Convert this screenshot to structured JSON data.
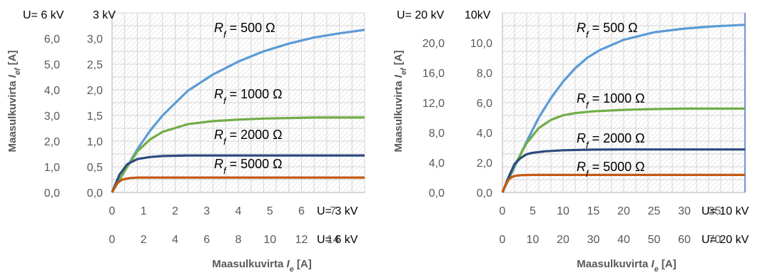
{
  "chart_data": [
    {
      "type": "line",
      "xlabel": "Maasulkuvirta I_e [A]",
      "ylabel": "Maasulkuvirta I_ef [A]",
      "x_axis_primary": {
        "unit_label": "U= 3 kV",
        "ticks": [
          "0",
          "1",
          "2",
          "3",
          "4",
          "5",
          "6",
          "7"
        ],
        "xlim": [
          0,
          10
        ]
      },
      "x_axis_secondary": {
        "unit_label": "U= 6 kV",
        "ticks": [
          "0",
          "2",
          "4",
          "6",
          "8",
          "10",
          "12",
          "14"
        ],
        "xlim": [
          0,
          20
        ]
      },
      "y_axis_primary": {
        "unit_label": "3 kV",
        "ticks": [
          "0,0",
          "0,5",
          "1,0",
          "1,5",
          "2,0",
          "2,5",
          "3,0"
        ],
        "ylim": [
          0,
          3.5
        ]
      },
      "y_axis_secondary": {
        "unit_label": "U= 6 kV",
        "ticks": [
          "0,0",
          "1,0",
          "2,0",
          "3,0",
          "4,0",
          "5,0",
          "6,0"
        ],
        "ylim": [
          0,
          7
        ]
      },
      "grid": true,
      "series": [
        {
          "name": "R_f = 500 Ω",
          "color": "#5B9BD5",
          "x": [
            0,
            0.5,
            1,
            1.5,
            2,
            3,
            4,
            5,
            6,
            7,
            8,
            9,
            10
          ],
          "y": [
            0,
            0.42,
            0.84,
            1.2,
            1.5,
            1.98,
            2.3,
            2.55,
            2.75,
            2.9,
            3.02,
            3.1,
            3.17
          ]
        },
        {
          "name": "R_f = 1000 Ω",
          "color": "#70AD47",
          "x": [
            0,
            0.5,
            1,
            1.5,
            2,
            3,
            4,
            5,
            6,
            7,
            8,
            9,
            10
          ],
          "y": [
            0,
            0.42,
            0.8,
            1.03,
            1.18,
            1.33,
            1.39,
            1.42,
            1.44,
            1.45,
            1.46,
            1.46,
            1.46
          ]
        },
        {
          "name": "R_f = 2000 Ω",
          "color": "#2E4A7D",
          "x": [
            0,
            0.3,
            0.6,
            1,
            1.5,
            2,
            3,
            4,
            5,
            6,
            7,
            8,
            9,
            10
          ],
          "y": [
            0,
            0.35,
            0.55,
            0.65,
            0.69,
            0.71,
            0.72,
            0.72,
            0.72,
            0.72,
            0.72,
            0.72,
            0.72,
            0.72
          ]
        },
        {
          "name": "R_f = 5000 Ω",
          "color": "#C55A11",
          "x": [
            0,
            0.2,
            0.4,
            0.7,
            1,
            2,
            3,
            4,
            5,
            6,
            7,
            8,
            9,
            10
          ],
          "y": [
            0,
            0.18,
            0.25,
            0.28,
            0.29,
            0.29,
            0.29,
            0.29,
            0.29,
            0.29,
            0.29,
            0.29,
            0.29,
            0.29
          ]
        }
      ]
    },
    {
      "type": "line",
      "xlabel": "Maasulkuvirta I_e [A]",
      "ylabel": "Maasulkuvirta I_ef [A]",
      "x_axis_primary": {
        "unit_label": "U= 10 kV",
        "ticks": [
          "0",
          "5",
          "10",
          "15",
          "20",
          "25",
          "30",
          "35"
        ],
        "xlim": [
          0,
          40
        ]
      },
      "x_axis_secondary": {
        "unit_label": "U= 20 kV",
        "ticks": [
          "0",
          "10",
          "20",
          "30",
          "40",
          "50",
          "60",
          "70"
        ],
        "xlim": [
          0,
          80
        ]
      },
      "y_axis_primary": {
        "unit_label": "10kV",
        "ticks": [
          "0,0",
          "2,0",
          "4,0",
          "6,0",
          "8,0",
          "10,0"
        ],
        "ylim": [
          0,
          12
        ]
      },
      "y_axis_secondary": {
        "unit_label": "U= 20 kV",
        "ticks": [
          "0,0",
          "4,0",
          "8,0",
          "12,0",
          "16,0",
          "20,0"
        ],
        "ylim": [
          0,
          24
        ]
      },
      "grid": true,
      "series": [
        {
          "name": "R_f = 500 Ω",
          "color": "#5B9BD5",
          "x": [
            0,
            2,
            4,
            6,
            8,
            10,
            12,
            14,
            16,
            20,
            25,
            30,
            35,
            40
          ],
          "y": [
            0,
            1.7,
            3.4,
            5,
            6.3,
            7.4,
            8.3,
            9,
            9.5,
            10.2,
            10.7,
            10.95,
            11.1,
            11.2
          ]
        },
        {
          "name": "R_f = 1000 Ω",
          "color": "#70AD47",
          "x": [
            0,
            2,
            4,
            6,
            8,
            10,
            12,
            15,
            20,
            25,
            30,
            35,
            40
          ],
          "y": [
            0,
            1.8,
            3.3,
            4.3,
            4.85,
            5.15,
            5.3,
            5.42,
            5.52,
            5.57,
            5.6,
            5.6,
            5.6
          ]
        },
        {
          "name": "R_f = 2000 Ω",
          "color": "#2E4A7D",
          "x": [
            0,
            1,
            2,
            3,
            4,
            5,
            7,
            10,
            15,
            20,
            25,
            30,
            35,
            40
          ],
          "y": [
            0,
            1.0,
            1.9,
            2.3,
            2.55,
            2.65,
            2.75,
            2.82,
            2.86,
            2.87,
            2.87,
            2.87,
            2.87,
            2.87
          ]
        },
        {
          "name": "R_f = 5000 Ω",
          "color": "#C55A11",
          "x": [
            0,
            0.5,
            1,
            1.5,
            2,
            3,
            5,
            10,
            20,
            30,
            40
          ],
          "y": [
            0,
            0.5,
            0.85,
            1.02,
            1.1,
            1.15,
            1.17,
            1.17,
            1.17,
            1.17,
            1.17
          ]
        }
      ]
    }
  ]
}
